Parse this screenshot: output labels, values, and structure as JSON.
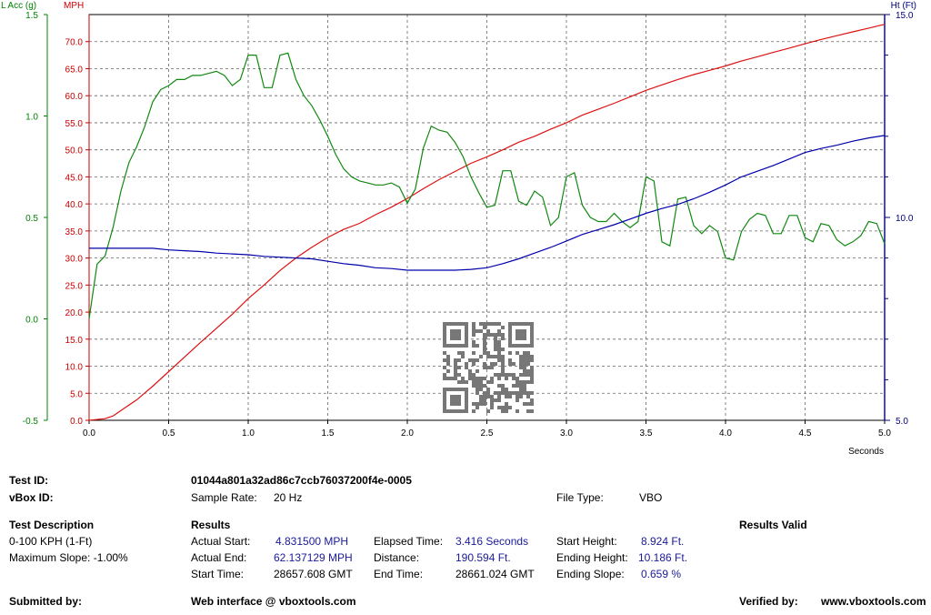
{
  "chart_data": {
    "type": "line",
    "x_label": "Seconds",
    "x_range": [
      0,
      5
    ],
    "x_ticks": [
      "0.0",
      "0.5",
      "1.0",
      "1.5",
      "2.0",
      "2.5",
      "3.0",
      "3.5",
      "4.0",
      "4.5",
      "5.0"
    ],
    "grid": true,
    "axes": {
      "left_outer": {
        "label": "L Acc (g)",
        "color": "#008000",
        "range": [
          -0.5,
          1.5
        ],
        "ticks": [
          "-0.5",
          "0.0",
          "0.5",
          "1.0",
          "1.5"
        ]
      },
      "left_inner": {
        "label": "MPH",
        "color": "#cc0000",
        "range": [
          0,
          75
        ],
        "ticks": [
          "0.0",
          "5.0",
          "10.0",
          "15.0",
          "20.0",
          "25.0",
          "30.0",
          "35.0",
          "40.0",
          "45.0",
          "50.0",
          "55.0",
          "60.0",
          "65.0",
          "70.0"
        ]
      },
      "right": {
        "label": "Ht (Ft)",
        "color": "#000080",
        "range": [
          5,
          15
        ],
        "ticks": [
          "5.0",
          "10.0",
          "15.0"
        ]
      }
    },
    "series": [
      {
        "name": "MPH",
        "color": "#dd1111",
        "axis": "left_inner",
        "x": [
          0,
          0.1,
          0.15,
          0.2,
          0.3,
          0.4,
          0.5,
          0.6,
          0.7,
          0.8,
          0.9,
          1.0,
          1.1,
          1.2,
          1.3,
          1.4,
          1.5,
          1.6,
          1.7,
          1.8,
          1.9,
          2.0,
          2.1,
          2.2,
          2.3,
          2.4,
          2.5,
          2.6,
          2.7,
          2.8,
          2.9,
          3.0,
          3.1,
          3.2,
          3.3,
          3.4,
          3.5,
          3.6,
          3.7,
          3.8,
          3.9,
          4.0,
          4.1,
          4.2,
          4.3,
          4.4,
          4.5,
          4.6,
          4.7,
          4.8,
          4.9,
          5.0
        ],
        "y": [
          0,
          0.3,
          0.8,
          1.8,
          3.8,
          6.3,
          9.0,
          11.7,
          14.4,
          17.0,
          19.6,
          22.5,
          25.0,
          27.7,
          30.0,
          32.0,
          33.8,
          35.3,
          36.4,
          38.0,
          39.4,
          41.0,
          42.8,
          44.5,
          46.0,
          47.5,
          48.7,
          50.0,
          51.4,
          52.5,
          53.8,
          55.0,
          56.4,
          57.5,
          58.6,
          59.8,
          61.0,
          62.0,
          63.0,
          63.9,
          64.7,
          65.5,
          66.4,
          67.2,
          68.0,
          68.8,
          69.6,
          70.4,
          71.1,
          71.8,
          72.5,
          73.2
        ]
      },
      {
        "name": "L Acc (g)",
        "color": "#118811",
        "axis": "left_outer",
        "x": [
          0,
          0.05,
          0.1,
          0.15,
          0.2,
          0.25,
          0.3,
          0.35,
          0.4,
          0.45,
          0.5,
          0.55,
          0.6,
          0.65,
          0.7,
          0.75,
          0.8,
          0.85,
          0.9,
          0.95,
          1.0,
          1.05,
          1.1,
          1.15,
          1.2,
          1.25,
          1.3,
          1.35,
          1.4,
          1.45,
          1.5,
          1.55,
          1.6,
          1.65,
          1.7,
          1.75,
          1.8,
          1.85,
          1.9,
          1.95,
          2.0,
          2.05,
          2.1,
          2.15,
          2.2,
          2.25,
          2.3,
          2.35,
          2.4,
          2.45,
          2.5,
          2.55,
          2.6,
          2.65,
          2.7,
          2.75,
          2.8,
          2.85,
          2.9,
          2.95,
          3.0,
          3.05,
          3.1,
          3.15,
          3.2,
          3.25,
          3.3,
          3.35,
          3.4,
          3.45,
          3.5,
          3.55,
          3.6,
          3.65,
          3.7,
          3.75,
          3.8,
          3.85,
          3.9,
          3.95,
          4.0,
          4.05,
          4.1,
          4.15,
          4.2,
          4.25,
          4.3,
          4.35,
          4.4,
          4.45,
          4.5,
          4.55,
          4.6,
          4.65,
          4.7,
          4.75,
          4.8,
          4.85,
          4.9,
          4.95,
          5.0
        ],
        "y": [
          0.0,
          0.27,
          0.31,
          0.45,
          0.63,
          0.77,
          0.85,
          0.95,
          1.07,
          1.13,
          1.15,
          1.18,
          1.18,
          1.2,
          1.2,
          1.21,
          1.22,
          1.2,
          1.15,
          1.18,
          1.3,
          1.3,
          1.14,
          1.14,
          1.3,
          1.31,
          1.18,
          1.1,
          1.05,
          0.98,
          0.9,
          0.81,
          0.74,
          0.7,
          0.68,
          0.67,
          0.66,
          0.66,
          0.67,
          0.65,
          0.57,
          0.64,
          0.84,
          0.95,
          0.93,
          0.92,
          0.87,
          0.8,
          0.7,
          0.62,
          0.55,
          0.56,
          0.73,
          0.73,
          0.58,
          0.56,
          0.63,
          0.6,
          0.46,
          0.5,
          0.7,
          0.72,
          0.56,
          0.5,
          0.48,
          0.48,
          0.52,
          0.48,
          0.45,
          0.48,
          0.7,
          0.68,
          0.38,
          0.36,
          0.59,
          0.6,
          0.46,
          0.42,
          0.46,
          0.43,
          0.3,
          0.29,
          0.43,
          0.49,
          0.52,
          0.51,
          0.42,
          0.42,
          0.51,
          0.51,
          0.4,
          0.38,
          0.47,
          0.46,
          0.39,
          0.36,
          0.38,
          0.41,
          0.48,
          0.47,
          0.37
        ]
      },
      {
        "name": "Ht (Ft)",
        "color": "#0000aa",
        "axis": "right",
        "x": [
          0,
          0.2,
          0.4,
          0.5,
          0.6,
          0.7,
          0.8,
          0.9,
          1.0,
          1.1,
          1.2,
          1.3,
          1.4,
          1.5,
          1.6,
          1.7,
          1.8,
          1.9,
          2.0,
          2.1,
          2.2,
          2.3,
          2.4,
          2.5,
          2.6,
          2.7,
          2.8,
          2.9,
          3.0,
          3.1,
          3.2,
          3.3,
          3.4,
          3.5,
          3.6,
          3.7,
          3.8,
          3.9,
          4.0,
          4.1,
          4.2,
          4.3,
          4.4,
          4.5,
          4.6,
          4.7,
          4.8,
          4.9,
          5.0
        ],
        "y": [
          9.24,
          9.24,
          9.24,
          9.2,
          9.18,
          9.16,
          9.12,
          9.1,
          9.08,
          9.04,
          9.02,
          9.0,
          8.98,
          8.92,
          8.86,
          8.82,
          8.76,
          8.74,
          8.7,
          8.7,
          8.7,
          8.7,
          8.72,
          8.76,
          8.86,
          8.98,
          9.12,
          9.26,
          9.42,
          9.58,
          9.7,
          9.82,
          9.96,
          10.1,
          10.22,
          10.32,
          10.46,
          10.62,
          10.8,
          11.0,
          11.14,
          11.28,
          11.44,
          11.6,
          11.7,
          11.78,
          11.88,
          11.96,
          12.02
        ]
      }
    ]
  },
  "report": {
    "test_id_label": "Test ID:",
    "test_id_value": "01044a801a32ad86c7ccb76037200f4e-0005",
    "vbox_id_label": "vBox ID:",
    "sample_rate_label": "Sample Rate:",
    "sample_rate_value": "20 Hz",
    "file_type_label": "File Type:",
    "file_type_value": "VBO",
    "test_description_label": "Test Description",
    "test_description_value": "0-100 KPH (1-Ft)",
    "max_slope": "Maximum Slope:  -1.00%",
    "results_label": "Results",
    "results_valid": "Results Valid",
    "actual_start_label": "Actual Start:",
    "actual_start_value": "4.831500 MPH",
    "actual_end_label": "Actual End:",
    "actual_end_value": "62.137129 MPH",
    "start_time_label": "Start Time:",
    "start_time_value": "28657.608 GMT",
    "elapsed_label": "Elapsed Time:",
    "elapsed_value": "3.416 Seconds",
    "distance_label": "Distance:",
    "distance_value": "190.594 Ft.",
    "end_time_label": "End Time:",
    "end_time_value": "28661.024 GMT",
    "start_height_label": "Start Height:",
    "start_height_value": "8.924 Ft.",
    "ending_height_label": "Ending Height:",
    "ending_height_value": "10.186 Ft.",
    "ending_slope_label": "Ending Slope:",
    "ending_slope_value": "0.659 %",
    "submitted_by_label": "Submitted by:",
    "web_interface": "Web interface @ vboxtools.com",
    "verified_by_label": "Verified by:",
    "website": "www.vboxtools.com"
  }
}
